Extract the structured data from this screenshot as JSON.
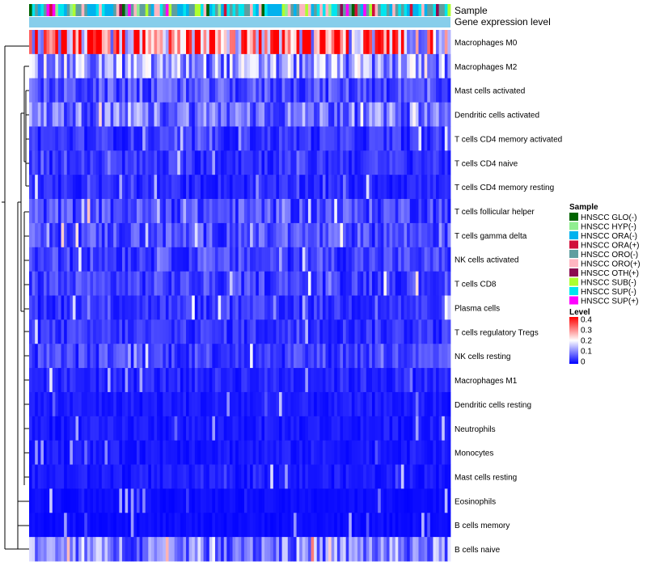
{
  "chart_data": {
    "type": "heatmap",
    "annotation_tracks": [
      "Sample",
      "Gene expression level"
    ],
    "rows": [
      "Macrophages M0",
      "Macrophages M2",
      "Mast cells activated",
      "Dendritic cells activated",
      "T cells CD4 memory activated",
      "T cells CD4 naive",
      "T cells CD4 memory resting",
      "T cells follicular helper",
      "T cells gamma delta",
      "NK cells activated",
      "T cells CD8",
      "Plasma cells",
      "T cells regulatory  Tregs",
      "NK cells resting",
      "Macrophages M1",
      "Dendritic cells resting",
      "Neutrophils",
      "Monocytes",
      "Mast cells resting",
      "Eosinophils",
      "B cells memory",
      "B cells naive"
    ],
    "row_mean_level": [
      0.3,
      0.12,
      0.06,
      0.09,
      0.04,
      0.04,
      0.03,
      0.06,
      0.06,
      0.05,
      0.05,
      0.04,
      0.04,
      0.05,
      0.03,
      0.02,
      0.02,
      0.02,
      0.02,
      0.01,
      0.01,
      0.1
    ],
    "n_samples": 145,
    "legend_sample": {
      "title": "Sample",
      "items": [
        {
          "label": "HNSCC GLO(-)",
          "color": "#006400"
        },
        {
          "label": "HNSCC HYP(-)",
          "color": "#90EE90"
        },
        {
          "label": "HNSCC ORA(-)",
          "color": "#00B2EE"
        },
        {
          "label": "HNSCC ORA(+)",
          "color": "#D0103A"
        },
        {
          "label": "HNSCC ORO(-)",
          "color": "#5F9EA0"
        },
        {
          "label": "HNSCC ORO(+)",
          "color": "#FFB6C1"
        },
        {
          "label": "HNSCC OTH(+)",
          "color": "#8B0A50"
        },
        {
          "label": "HNSCC SUB(-)",
          "color": "#ADFF2F"
        },
        {
          "label": "HNSCC SUP(-)",
          "color": "#00E5EE"
        },
        {
          "label": "HNSCC SUP(+)",
          "color": "#FF00FF"
        }
      ]
    },
    "legend_level": {
      "title": "Level",
      "ticks": [
        "0.4",
        "0.3",
        "0.2",
        "0.1",
        "0"
      ],
      "range": [
        0,
        0.4
      ],
      "colors": {
        "low": "#0000FF",
        "mid": "#FFFFFF",
        "high": "#FF0000"
      }
    },
    "expression_bar_color": "#87CEEB"
  }
}
